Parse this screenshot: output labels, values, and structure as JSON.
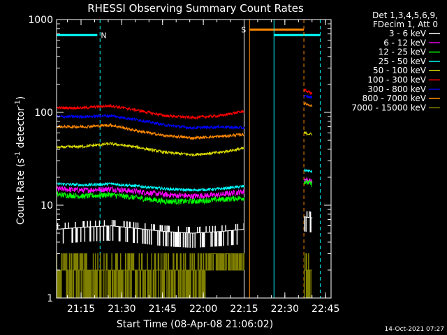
{
  "chart_data": {
    "type": "line",
    "title": "RHESSI Observing Summary Count Rates",
    "xlabel": "Start Time (08-Apr-08 21:06:02)",
    "ylabel": "Count Rate (s",
    "ylabel_sup1": "-1",
    "ylabel_mid": " detector",
    "ylabel_sup2": "-1",
    "ylabel_end": ")",
    "y_scale": "log",
    "ylim": [
      1,
      1000
    ],
    "xlim_minutes": [
      0,
      101
    ],
    "x_ticks": [
      {
        "label": "21:15",
        "minute": 9
      },
      {
        "label": "21:30",
        "minute": 24
      },
      {
        "label": "21:45",
        "minute": 39
      },
      {
        "label": "22:00",
        "minute": 54
      },
      {
        "label": "22:15",
        "minute": 69
      },
      {
        "label": "22:30",
        "minute": 84
      },
      {
        "label": "22:45",
        "minute": 99
      }
    ],
    "y_ticks": [
      {
        "label": "1",
        "value": 1
      },
      {
        "label": "10",
        "value": 10
      },
      {
        "label": "100",
        "value": 100
      },
      {
        "label": "1000",
        "value": 1000
      }
    ],
    "legend_header": [
      "Det 1,3,4,5,6,9,",
      "FDecim 1, Att 0"
    ],
    "legend_position": "right",
    "series": [
      {
        "name": "3 - 6 keV",
        "color": "#ffffff",
        "x": [
          0,
          10,
          20,
          30,
          40,
          50,
          60,
          69,
          89,
          91,
          94
        ],
        "y": [
          5.5,
          5.8,
          6.0,
          5.6,
          5.2,
          5.0,
          5.2,
          5.5,
          null,
          7.5,
          7.3
        ]
      },
      {
        "name": "6 - 12 keV",
        "color": "#ff00ff",
        "x": [
          0,
          10,
          20,
          30,
          40,
          50,
          60,
          69,
          89,
          91,
          94
        ],
        "y": [
          15,
          14.5,
          15,
          14,
          13,
          12.5,
          13,
          14,
          null,
          19,
          18
        ]
      },
      {
        "name": "12 - 25 keV",
        "color": "#00ff00",
        "x": [
          0,
          10,
          20,
          30,
          40,
          50,
          60,
          69,
          89,
          91,
          94
        ],
        "y": [
          13,
          12.5,
          13,
          12,
          11,
          11,
          11.5,
          12,
          null,
          18,
          17
        ]
      },
      {
        "name": "25 - 50 keV",
        "color": "#00ffff",
        "x": [
          0,
          10,
          20,
          30,
          40,
          50,
          60,
          69,
          89,
          91,
          94
        ],
        "y": [
          17,
          16.5,
          17,
          16,
          15,
          14.5,
          15,
          16,
          null,
          24,
          23
        ]
      },
      {
        "name": "50 - 100 keV",
        "color": "#dddd00",
        "x": [
          0,
          10,
          20,
          30,
          40,
          50,
          60,
          69,
          89,
          91,
          94
        ],
        "y": [
          42,
          43,
          46,
          42,
          37,
          35,
          37,
          41,
          null,
          60,
          58
        ]
      },
      {
        "name": "100 - 300 keV",
        "color": "#ff0000",
        "x": [
          0,
          10,
          20,
          30,
          40,
          50,
          60,
          69,
          89,
          91,
          94
        ],
        "y": [
          112,
          112,
          118,
          105,
          92,
          88,
          92,
          103,
          null,
          175,
          160
        ]
      },
      {
        "name": "300 - 800 keV",
        "color": "#0000ff",
        "x": [
          0,
          10,
          20,
          30,
          40,
          50,
          60,
          69,
          89,
          91,
          94
        ],
        "y": [
          90,
          90,
          92,
          83,
          73,
          68,
          70,
          68,
          null,
          150,
          145
        ]
      },
      {
        "name": "800 - 7000 keV",
        "color": "#ff8800",
        "x": [
          0,
          10,
          20,
          30,
          40,
          50,
          60,
          69,
          89,
          91,
          94
        ],
        "y": [
          70,
          70,
          73,
          63,
          56,
          53,
          55,
          58,
          null,
          125,
          118
        ]
      },
      {
        "name": "7000 - 15000 keV",
        "color": "#808000",
        "x": [
          0,
          10,
          20,
          30,
          40,
          50,
          60,
          69,
          89,
          91,
          94
        ],
        "y": [
          2.0,
          1.8,
          2.0,
          2.0,
          1.8,
          1.7,
          2.5,
          3.0,
          null,
          2.0,
          2.0
        ]
      }
    ],
    "flag_bars": [
      {
        "letter": "N",
        "color": "#00ffff",
        "x_start": 0,
        "x_end": 15,
        "y": 680
      },
      {
        "letter": "S",
        "color": "#ff8800",
        "x_start": 71,
        "x_end": 91,
        "y": 780
      },
      {
        "letter": "",
        "color": "#00ffff",
        "x_start": 80,
        "x_end": 97,
        "y": 680
      }
    ],
    "vlines": [
      {
        "x": 0,
        "color": "#00ffff",
        "dash": false
      },
      {
        "x": 16,
        "color": "#00ffff",
        "dash": true
      },
      {
        "x": 69,
        "color": "#ffffff",
        "dash": false
      },
      {
        "x": 71,
        "color": "#ff8800",
        "dash": false
      },
      {
        "x": 80,
        "color": "#00ffff",
        "dash": false
      },
      {
        "x": 91,
        "color": "#ff8800",
        "dash": true
      },
      {
        "x": 97,
        "color": "#00ffff",
        "dash": true
      }
    ],
    "timestamp": "14-Oct-2021 07:27"
  }
}
